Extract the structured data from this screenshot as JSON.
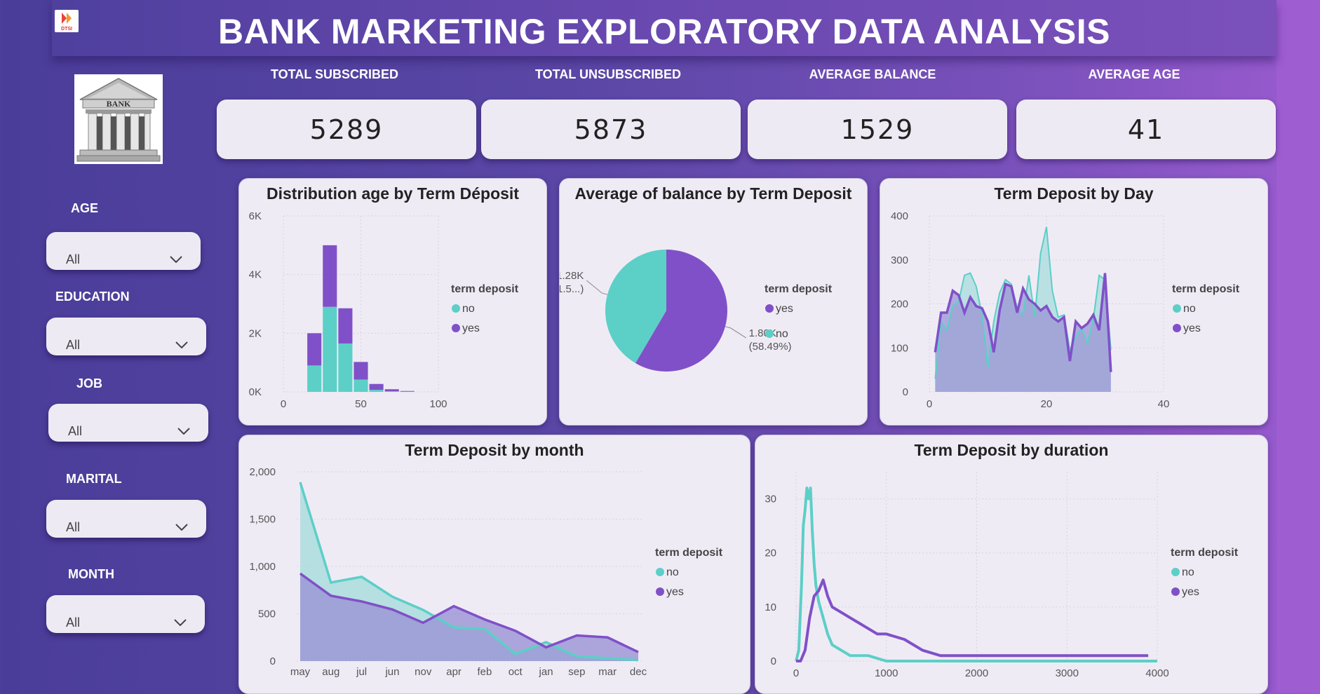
{
  "title": "BANK MARKETING EXPLORATORY DATA ANALYSIS",
  "logo_text": "DTSI",
  "bank_text": "BANK",
  "colors": {
    "no": "#5ccfc7",
    "yes": "#8050c8",
    "no_fill": "#a8dcdc",
    "yes_fill": "#9a94d4"
  },
  "kpis": [
    {
      "label": "TOTAL SUBSCRIBED",
      "value": "5289"
    },
    {
      "label": "TOTAL UNSUBSCRIBED",
      "value": "5873"
    },
    {
      "label": "AVERAGE BALANCE",
      "value": "1529"
    },
    {
      "label": "AVERAGE AGE",
      "value": "41"
    }
  ],
  "filters": [
    {
      "label": "AGE",
      "value": "All"
    },
    {
      "label": "EDUCATION",
      "value": "All"
    },
    {
      "label": "JOB",
      "value": "All"
    },
    {
      "label": "MARITAL",
      "value": "All"
    },
    {
      "label": "MONTH",
      "value": "All"
    }
  ],
  "chart_data": [
    {
      "title": "Distribution age by Term Déposit",
      "type": "bar",
      "stacked": true,
      "x": [
        20,
        30,
        40,
        50,
        60,
        70,
        80
      ],
      "series": [
        {
          "name": "no",
          "values": [
            900,
            2900,
            1650,
            420,
            70,
            20,
            10
          ]
        },
        {
          "name": "yes",
          "values": [
            1100,
            2100,
            1200,
            600,
            200,
            70,
            20
          ]
        }
      ],
      "xticks": [
        "0",
        "50",
        "100"
      ],
      "xlim": [
        0,
        100
      ],
      "yticks": [
        "0K",
        "2K",
        "4K",
        "6K"
      ],
      "ylim": [
        0,
        6000
      ],
      "legend_title": "term deposit",
      "legend": [
        "no",
        "yes"
      ],
      "legend_position": "right",
      "grid": true
    },
    {
      "title": "Average of balance by Term Deposit",
      "type": "pie",
      "slices": [
        {
          "name": "yes",
          "value": 1800,
          "label": "1.80K",
          "pct_label": "(58.49%)"
        },
        {
          "name": "no",
          "value": 1280,
          "label": "1.28K",
          "pct_label": "(41.5...)"
        }
      ],
      "legend_title": "term deposit",
      "legend": [
        "yes",
        "no"
      ],
      "legend_position": "right"
    },
    {
      "title": "Term Deposit by Day",
      "type": "area",
      "x": [
        1,
        2,
        3,
        4,
        5,
        6,
        7,
        8,
        9,
        10,
        11,
        12,
        13,
        14,
        15,
        16,
        17,
        18,
        19,
        20,
        21,
        22,
        23,
        24,
        25,
        26,
        27,
        28,
        29,
        30,
        31
      ],
      "series": [
        {
          "name": "no",
          "values": [
            30,
            160,
            140,
            195,
            205,
            265,
            270,
            240,
            175,
            55,
            160,
            225,
            255,
            245,
            190,
            175,
            265,
            170,
            315,
            375,
            230,
            170,
            175,
            95,
            125,
            145,
            110,
            165,
            265,
            255,
            95
          ]
        },
        {
          "name": "yes",
          "values": [
            90,
            180,
            180,
            230,
            220,
            180,
            215,
            195,
            190,
            160,
            90,
            185,
            245,
            240,
            180,
            235,
            210,
            200,
            185,
            195,
            170,
            160,
            170,
            70,
            160,
            145,
            155,
            175,
            140,
            270,
            45
          ]
        }
      ],
      "xticks": [
        "0",
        "20",
        "40"
      ],
      "xlim": [
        0,
        40
      ],
      "yticks": [
        "0",
        "100",
        "200",
        "300",
        "400"
      ],
      "ylim": [
        0,
        400
      ],
      "legend_title": "term deposit",
      "legend": [
        "no",
        "yes"
      ],
      "legend_position": "right",
      "grid": true
    },
    {
      "title": "Term Deposit by month",
      "type": "area",
      "categories": [
        "may",
        "aug",
        "jul",
        "jun",
        "nov",
        "apr",
        "feb",
        "oct",
        "jan",
        "sep",
        "mar",
        "dec"
      ],
      "series": [
        {
          "name": "no",
          "values": [
            1890,
            830,
            890,
            680,
            540,
            355,
            340,
            75,
            200,
            50,
            30,
            10
          ]
        },
        {
          "name": "yes",
          "values": [
            925,
            690,
            630,
            545,
            405,
            580,
            440,
            320,
            145,
            270,
            250,
            95
          ]
        }
      ],
      "yticks": [
        "0",
        "500",
        "1,000",
        "1,500",
        "2,000"
      ],
      "ylim": [
        0,
        2000
      ],
      "legend_title": "term deposit",
      "legend": [
        "no",
        "yes"
      ],
      "legend_position": "right",
      "grid": true
    },
    {
      "title": "Term Deposit by duration",
      "type": "line",
      "series": [
        {
          "name": "no",
          "x": [
            0,
            30,
            60,
            80,
            100,
            120,
            140,
            160,
            180,
            200,
            220,
            250,
            300,
            350,
            400,
            500,
            600,
            800,
            1000,
            1500,
            2000,
            3000,
            4000
          ],
          "values": [
            0,
            2,
            14,
            25,
            28,
            32,
            30,
            32,
            24,
            18,
            14,
            11,
            8,
            5,
            3,
            2,
            1,
            1,
            0,
            0,
            0,
            0,
            0
          ]
        },
        {
          "name": "yes",
          "x": [
            0,
            50,
            100,
            150,
            200,
            250,
            300,
            350,
            400,
            500,
            600,
            700,
            800,
            900,
            1000,
            1200,
            1400,
            1600,
            1800,
            2000,
            2500,
            3000,
            3500,
            3900
          ],
          "values": [
            0,
            0,
            2,
            8,
            12,
            13,
            15,
            12,
            10,
            9,
            8,
            7,
            6,
            5,
            5,
            4,
            2,
            1,
            1,
            1,
            1,
            1,
            1,
            1
          ]
        }
      ],
      "xticks": [
        "0",
        "1000",
        "2000",
        "3000",
        "4000"
      ],
      "xlim": [
        0,
        4000
      ],
      "yticks": [
        "0",
        "10",
        "20",
        "30"
      ],
      "ylim": [
        0,
        35
      ],
      "legend_title": "term deposit",
      "legend": [
        "no",
        "yes"
      ],
      "legend_position": "right",
      "grid": true
    }
  ]
}
